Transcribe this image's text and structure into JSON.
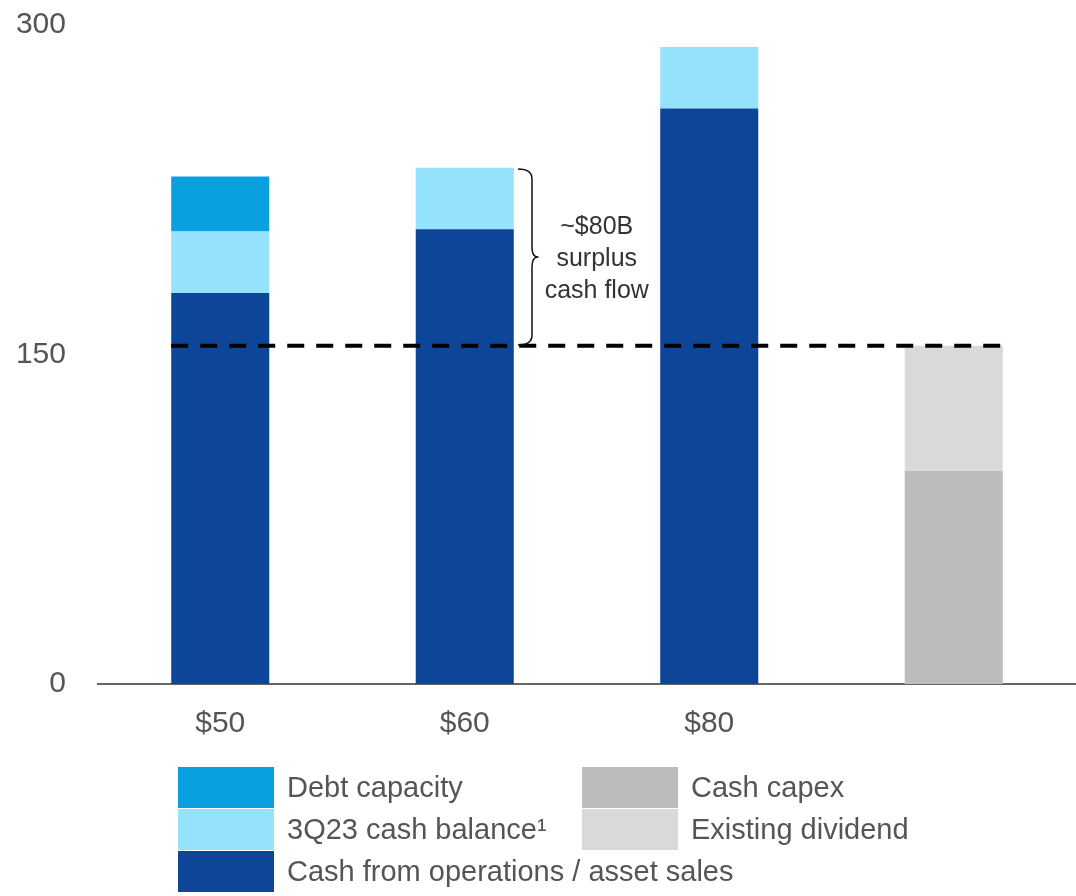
{
  "chart_data": {
    "type": "bar",
    "stacked": true,
    "categories": [
      "$50",
      "$60",
      "$80",
      null
    ],
    "series": [
      {
        "name": "Cash from operations / asset sales",
        "color": "#0d4599",
        "values": [
          178,
          207,
          262,
          null
        ]
      },
      {
        "name": "3Q23 cash balance¹",
        "color": "#94e2fc",
        "values": [
          28,
          28,
          28,
          null
        ]
      },
      {
        "name": "Debt capacity",
        "color": "#0aa0e0",
        "values": [
          25,
          null,
          null,
          null
        ]
      },
      {
        "name": "Cash capex",
        "color": "#bcbcbc",
        "values": [
          null,
          null,
          null,
          97
        ]
      },
      {
        "name": "Existing dividend",
        "color": "#d9d9d9",
        "values": [
          null,
          null,
          null,
          57
        ]
      }
    ],
    "ylim": [
      0,
      300
    ],
    "yticks": [
      0,
      150,
      300
    ],
    "ref_lines": [
      {
        "axis": "y",
        "value": 154,
        "color": "#000000",
        "line_style": "dashed"
      }
    ],
    "annotations": [
      "~$80B surplus cash flow"
    ],
    "legend": "bottom"
  }
}
